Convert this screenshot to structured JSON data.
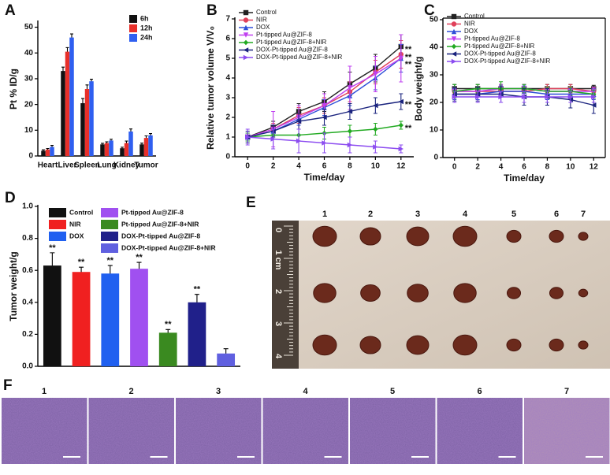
{
  "chart_data": [
    {
      "type": "grouped-bar",
      "panel": "A",
      "y_label": "Pt % ID/g",
      "categories": [
        "Heart",
        "Liver",
        "Spleen",
        "Lung",
        "Kidney",
        "Tumor"
      ],
      "series": [
        {
          "name": "6h",
          "color": "#111111",
          "values": [
            2,
            33,
            20.5,
            4.5,
            3,
            4.5
          ],
          "errors": [
            0.4,
            1.5,
            1.8,
            0.4,
            0.4,
            0.5
          ]
        },
        {
          "name": "12h",
          "color": "#e8302a",
          "values": [
            2.5,
            40.5,
            26,
            5,
            5,
            7
          ],
          "errors": [
            0.4,
            1.6,
            1.6,
            0.5,
            0.8,
            0.8
          ]
        },
        {
          "name": "24h",
          "color": "#2f5ff0",
          "values": [
            3.5,
            46,
            29,
            6,
            9.5,
            8
          ],
          "errors": [
            0.6,
            1.4,
            0.8,
            0.5,
            1.0,
            0.7
          ]
        }
      ],
      "ylim": [
        0,
        52
      ],
      "yticks": [
        0,
        10,
        20,
        30,
        40,
        50
      ]
    },
    {
      "type": "line",
      "panel": "B",
      "y_label": "Relative tumor volume V/V₀",
      "x_label": "Time/day",
      "x": [
        0,
        2,
        4,
        6,
        8,
        10,
        12
      ],
      "series": [
        {
          "name": "Control",
          "color": "#222222",
          "marker": "square",
          "values": [
            1,
            1.5,
            2.3,
            2.8,
            3.7,
            4.5,
            5.6
          ],
          "errors": [
            0.2,
            0.3,
            0.4,
            0.5,
            0.6,
            0.7,
            0.6
          ]
        },
        {
          "name": "NIR",
          "color": "#e0405a",
          "marker": "circle",
          "values": [
            1,
            1.4,
            2.1,
            2.6,
            3.3,
            4.3,
            5.2
          ],
          "errors": [
            0.2,
            0.3,
            0.4,
            0.4,
            0.5,
            0.6,
            0.7
          ]
        },
        {
          "name": "DOX",
          "color": "#2f4fd8",
          "marker": "triangle-up",
          "values": [
            1,
            1.3,
            1.9,
            2.5,
            3.1,
            4.0,
            5.0
          ],
          "errors": [
            0.2,
            0.3,
            0.3,
            0.4,
            0.5,
            0.6,
            0.7
          ]
        },
        {
          "name": "Pt-tipped Au@ZIF-8",
          "color": "#c040f0",
          "marker": "triangle-down",
          "values": [
            1,
            1.4,
            2.0,
            2.6,
            3.5,
            4.2,
            5.0
          ],
          "errors": [
            0.3,
            0.9,
            0.6,
            0.6,
            1.1,
            0.9,
            1.2
          ]
        },
        {
          "name": "Pt-tipped Au@ZIF-8+NIR",
          "color": "#22aa22",
          "marker": "diamond",
          "values": [
            1,
            1.1,
            1.1,
            1.2,
            1.3,
            1.4,
            1.6
          ],
          "errors": [
            0.2,
            0.2,
            0.3,
            0.3,
            0.3,
            0.3,
            0.2
          ]
        },
        {
          "name": "DOX-Pt-tipped Au@ZIF-8",
          "color": "#1a237e",
          "marker": "triangle-left",
          "values": [
            1,
            1.3,
            1.8,
            2.0,
            2.3,
            2.6,
            2.8
          ],
          "errors": [
            0.3,
            0.3,
            0.4,
            0.4,
            0.4,
            0.4,
            0.4
          ]
        },
        {
          "name": "DOX-Pt-tipped Au@ZIF-8+NIR",
          "color": "#8c4cf0",
          "marker": "triangle-right",
          "values": [
            1,
            0.9,
            0.8,
            0.7,
            0.6,
            0.5,
            0.4
          ],
          "errors": [
            0.4,
            0.5,
            0.6,
            0.5,
            0.4,
            0.3,
            0.2
          ]
        }
      ],
      "annotations": [
        "**",
        "**",
        "**",
        "**",
        "**"
      ],
      "xlim": [
        -1,
        13
      ],
      "xticks": [
        0,
        2,
        4,
        6,
        8,
        10,
        12
      ],
      "ylim": [
        0,
        7
      ],
      "yticks": [
        0,
        1,
        2,
        3,
        4,
        5,
        6,
        7
      ]
    },
    {
      "type": "line",
      "panel": "C",
      "y_label": "Body weight/g",
      "x_label": "Time/day",
      "x": [
        0,
        2,
        4,
        6,
        8,
        10,
        12
      ],
      "series": [
        {
          "name": "Control",
          "color": "#222222",
          "marker": "square",
          "values": [
            25,
            25,
            25,
            25,
            25,
            25,
            25
          ],
          "errors": [
            1.5,
            1.5,
            1.5,
            1.5,
            1.5,
            1.5,
            1.2
          ]
        },
        {
          "name": "NIR",
          "color": "#e0405a",
          "marker": "circle",
          "values": [
            24,
            24,
            24,
            24,
            25,
            25,
            24
          ],
          "errors": [
            1.5,
            1.5,
            1.5,
            1.5,
            1.5,
            1.5,
            1.2
          ]
        },
        {
          "name": "DOX",
          "color": "#2f4fd8",
          "marker": "triangle-up",
          "values": [
            23,
            23,
            24,
            24,
            23,
            23,
            23
          ],
          "errors": [
            2,
            2,
            2,
            2,
            2,
            2,
            2
          ]
        },
        {
          "name": "Pt-tipped Au@ZIF-8",
          "color": "#c040f0",
          "marker": "triangle-down",
          "values": [
            24,
            24,
            25,
            25,
            24,
            24,
            24
          ],
          "errors": [
            1.5,
            1.5,
            1.5,
            1.5,
            1.5,
            1.5,
            1.5
          ]
        },
        {
          "name": "Pt-tipped Au@ZIF-8+NIR",
          "color": "#22aa22",
          "marker": "diamond",
          "values": [
            24,
            25,
            25,
            25,
            24,
            24,
            23
          ],
          "errors": [
            2.5,
            1.5,
            2.5,
            1.5,
            1.5,
            1.5,
            1.5
          ]
        },
        {
          "name": "DOX-Pt-tipped Au@ZIF-8",
          "color": "#1a237e",
          "marker": "triangle-left",
          "values": [
            23,
            23,
            23,
            22,
            22,
            21,
            19
          ],
          "errors": [
            2.5,
            2.5,
            3,
            3,
            3,
            3,
            3
          ]
        },
        {
          "name": "DOX-Pt-tipped Au@ZIF-8+NIR",
          "color": "#8c4cf0",
          "marker": "triangle-right",
          "values": [
            22,
            22,
            22,
            22,
            22,
            22,
            22
          ],
          "errors": [
            2,
            2,
            2,
            2,
            2,
            2,
            2
          ]
        }
      ],
      "xlim": [
        -1,
        13
      ],
      "xticks": [
        0,
        2,
        4,
        6,
        8,
        10,
        12
      ],
      "ylim": [
        0,
        50
      ],
      "yticks": [
        0,
        10,
        20,
        30,
        40,
        50
      ]
    },
    {
      "type": "bar",
      "panel": "D",
      "y_label": "Tumor weight/g",
      "categories": [
        "Control",
        "NIR",
        "DOX",
        "Pt-tipped Au@ZIF-8",
        "Pt-tipped Au@ZIF-8+NIR",
        "DOX-Pt-tipped Au@ZIF-8",
        "DOX-Pt-tipped Au@ZIF-8+NIR"
      ],
      "colors": [
        "#111111",
        "#f02020",
        "#2060f0",
        "#a050f0",
        "#3a8a20",
        "#20208a",
        "#6060e0"
      ],
      "values": [
        0.63,
        0.59,
        0.58,
        0.61,
        0.21,
        0.4,
        0.08
      ],
      "errors": [
        0.08,
        0.03,
        0.05,
        0.04,
        0.02,
        0.05,
        0.03
      ],
      "annotations": [
        "**",
        "**",
        "**",
        "**",
        "**",
        "**"
      ],
      "ylim": [
        0,
        1.0
      ],
      "yticks": [
        {
          "value": 0,
          "label": "0.0"
        },
        0.2,
        0.4,
        0.6,
        0.8,
        {
          "value": 1.0,
          "label": "1.0"
        }
      ]
    }
  ],
  "panel_e": {
    "label": "E",
    "lanes": [
      "1",
      "2",
      "3",
      "4",
      "5",
      "6",
      "7"
    ],
    "ruler": [
      "0",
      "1 cm",
      "2",
      "3",
      "4"
    ]
  },
  "panel_f": {
    "label": "F",
    "lanes": [
      "1",
      "2",
      "3",
      "4",
      "5",
      "6",
      "7"
    ]
  }
}
